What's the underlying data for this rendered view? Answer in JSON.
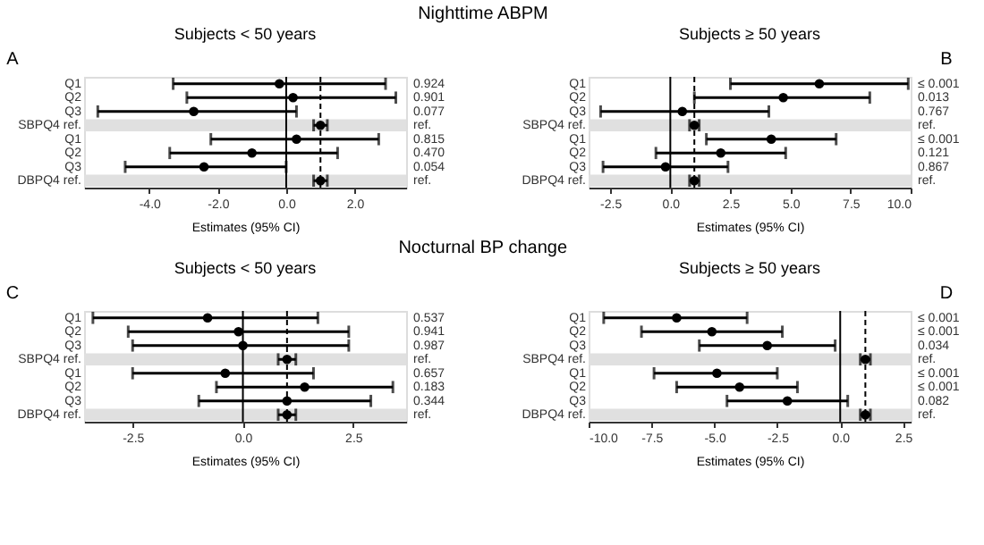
{
  "chart_data": [
    {
      "type": "scatter",
      "orientation": "horizontal",
      "title": "Subjects < 50 years",
      "xlabel": "Estimates (95% CI)",
      "annotations": [
        "Nighttime ABPM",
        "A",
        "0.924",
        "0.901",
        "0.077",
        "ref.",
        "0.815",
        "0.470",
        "0.054",
        "ref."
      ],
      "categories": [
        "Q1",
        "Q2",
        "Q3",
        "SBPQ4 ref.",
        "Q1",
        "Q2",
        "Q3",
        "DBPQ4 ref."
      ],
      "values": [
        -0.2,
        0.2,
        -2.7,
        1.0,
        0.3,
        -1.0,
        -2.4,
        1.0
      ],
      "errors": [
        [
          -3.3,
          2.9
        ],
        [
          -2.9,
          3.2
        ],
        [
          -5.5,
          0.3
        ],
        [
          0.8,
          1.2
        ],
        [
          -2.2,
          2.7
        ],
        [
          -3.4,
          1.5
        ],
        [
          -4.7,
          0.0
        ],
        [
          0.8,
          1.2
        ]
      ],
      "color": "#000000",
      "marker": "circle",
      "xlim": [
        -5.9,
        3.5
      ],
      "xticks": [
        {
          "value": -4,
          "label": "-4.0"
        },
        {
          "value": -2,
          "label": "-2.0"
        },
        {
          "value": 0,
          "label": "0.0"
        },
        {
          "value": 2,
          "label": "2.0"
        }
      ],
      "ref_lines": [
        {
          "axis": "x",
          "value": 0,
          "line_style": "solid"
        },
        {
          "axis": "x",
          "value": 1,
          "line_style": "dashed"
        }
      ],
      "bands": [
        {
          "axis": "y",
          "from": "SBPQ4 ref.",
          "to": "SBPQ4 ref.",
          "color": "#e0e0e0"
        },
        {
          "axis": "y",
          "from": "DBPQ4 ref.",
          "to": "DBPQ4 ref.",
          "color": "#e0e0e0"
        }
      ],
      "grid": false
    },
    {
      "type": "scatter",
      "orientation": "horizontal",
      "title": "Subjects ≥ 50 years",
      "xlabel": "Estimates (95% CI)",
      "annotations": [
        "B",
        "≤ 0.001",
        "0.013",
        "0.767",
        "ref.",
        "≤ 0.001",
        "0.121",
        "0.867",
        "ref."
      ],
      "categories": [
        "Q1",
        "Q2",
        "Q3",
        "SBPQ4 ref.",
        "Q1",
        "Q2",
        "Q3",
        "DBPQ4 ref."
      ],
      "values": [
        6.2,
        4.7,
        0.5,
        1.0,
        4.2,
        2.1,
        -0.2,
        1.0
      ],
      "errors": [
        [
          2.5,
          9.9
        ],
        [
          1.0,
          8.3
        ],
        [
          -2.9,
          4.1
        ],
        [
          0.8,
          1.2
        ],
        [
          1.5,
          6.9
        ],
        [
          -0.6,
          4.8
        ],
        [
          -2.8,
          2.4
        ],
        [
          0.8,
          1.2
        ]
      ],
      "color": "#000000",
      "marker": "circle",
      "xlim": [
        -3.4,
        10.0
      ],
      "xticks": [
        -2.5,
        {
          "value": 0,
          "label": "0.0"
        },
        2.5,
        {
          "value": 5,
          "label": "5.0"
        },
        7.5,
        {
          "value": 10,
          "label": "10.0"
        }
      ],
      "ref_lines": [
        {
          "axis": "x",
          "value": 0,
          "line_style": "solid"
        },
        {
          "axis": "x",
          "value": 1,
          "line_style": "dashed"
        }
      ],
      "bands": [
        {
          "axis": "y",
          "from": "SBPQ4 ref.",
          "to": "SBPQ4 ref.",
          "color": "#e0e0e0"
        },
        {
          "axis": "y",
          "from": "DBPQ4 ref.",
          "to": "DBPQ4 ref.",
          "color": "#e0e0e0"
        }
      ],
      "grid": false
    },
    {
      "type": "scatter",
      "orientation": "horizontal",
      "title": "Subjects < 50 years",
      "xlabel": "Estimates (95% CI)",
      "annotations": [
        "Nocturnal BP change",
        "C",
        "0.537",
        "0.941",
        "0.987",
        "ref.",
        "0.657",
        "0.183",
        "0.344",
        "ref."
      ],
      "categories": [
        "Q1",
        "Q2",
        "Q3",
        "SBPQ4 ref.",
        "Q1",
        "Q2",
        "Q3",
        "DBPQ4 ref."
      ],
      "values": [
        -0.8,
        -0.1,
        0.0,
        1.0,
        -0.4,
        1.4,
        1.0,
        1.0
      ],
      "errors": [
        [
          -3.4,
          1.7
        ],
        [
          -2.6,
          2.4
        ],
        [
          -2.5,
          2.4
        ],
        [
          0.8,
          1.2
        ],
        [
          -2.5,
          1.6
        ],
        [
          -0.6,
          3.4
        ],
        [
          -1.0,
          2.9
        ],
        [
          0.8,
          1.2
        ]
      ],
      "color": "#000000",
      "marker": "circle",
      "xlim": [
        -3.6,
        3.7
      ],
      "xticks": [
        -2.5,
        {
          "value": 0,
          "label": "0.0"
        },
        2.5
      ],
      "ref_lines": [
        {
          "axis": "x",
          "value": 0,
          "line_style": "solid"
        },
        {
          "axis": "x",
          "value": 1,
          "line_style": "dashed"
        }
      ],
      "bands": [
        {
          "axis": "y",
          "from": "SBPQ4 ref.",
          "to": "SBPQ4 ref.",
          "color": "#e0e0e0"
        },
        {
          "axis": "y",
          "from": "DBPQ4 ref.",
          "to": "DBPQ4 ref.",
          "color": "#e0e0e0"
        }
      ],
      "grid": false
    },
    {
      "type": "scatter",
      "orientation": "horizontal",
      "title": "Subjects ≥ 50 years",
      "xlabel": "Estimates (95% CI)",
      "annotations": [
        "D",
        "≤ 0.001",
        "≤ 0.001",
        "0.034",
        "ref.",
        "≤ 0.001",
        "≤ 0.001",
        "0.082",
        "ref."
      ],
      "categories": [
        "Q1",
        "Q2",
        "Q3",
        "SBPQ4 ref.",
        "Q1",
        "Q2",
        "Q3",
        "DBPQ4 ref."
      ],
      "values": [
        -6.5,
        -5.1,
        -2.9,
        1.0,
        -4.9,
        -4.0,
        -2.1,
        1.0
      ],
      "errors": [
        [
          -9.4,
          -3.7
        ],
        [
          -7.9,
          -2.3
        ],
        [
          -5.6,
          -0.2
        ],
        [
          0.8,
          1.2
        ],
        [
          -7.4,
          -2.5
        ],
        [
          -6.5,
          -1.7
        ],
        [
          -4.5,
          0.3
        ],
        [
          0.8,
          1.2
        ]
      ],
      "color": "#000000",
      "marker": "circle",
      "xlim": [
        -10.0,
        2.8
      ],
      "xticks": [
        {
          "value": -10,
          "label": "-10.0"
        },
        -7.5,
        {
          "value": -5,
          "label": "-5.0"
        },
        -2.5,
        {
          "value": 0,
          "label": "0.0"
        },
        2.5
      ],
      "ref_lines": [
        {
          "axis": "x",
          "value": 0,
          "line_style": "solid"
        },
        {
          "axis": "x",
          "value": 1,
          "line_style": "dashed"
        }
      ],
      "bands": [
        {
          "axis": "y",
          "from": "SBPQ4 ref.",
          "to": "SBPQ4 ref.",
          "color": "#e0e0e0"
        },
        {
          "axis": "y",
          "from": "DBPQ4 ref.",
          "to": "DBPQ4 ref.",
          "color": "#e0e0e0"
        }
      ],
      "grid": false
    }
  ]
}
